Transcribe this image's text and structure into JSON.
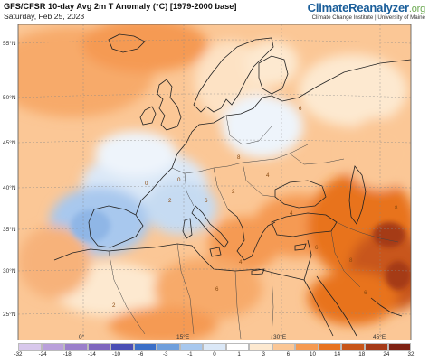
{
  "header": {
    "title": "GFS/CFSR 10-day Avg 2m T Anomaly (°C) [1979-2000 base]",
    "date": "Saturday, Feb 25, 2023",
    "brand_main": "ClimateReanalyzer",
    "brand_tld": ".org",
    "brand_sub": "Climate Change Institute | University of Maine"
  },
  "map": {
    "lat_labels": [
      "55°N",
      "50°N",
      "45°N",
      "40°N",
      "35°N",
      "30°N",
      "25°N"
    ],
    "lon_labels": [
      "0°",
      "15°E",
      "30°E",
      "45°E"
    ],
    "anomaly_numbers": [
      "6",
      "8",
      "4",
      "0",
      "0",
      "2",
      "6",
      "2",
      "4",
      "6",
      "8",
      "4",
      "2",
      "6",
      "6",
      "8"
    ]
  },
  "legend": {
    "labels": [
      "-32",
      "-24",
      "-18",
      "-14",
      "-10",
      "-6",
      "-3",
      "-1",
      "0",
      "1",
      "3",
      "6",
      "10",
      "14",
      "18",
      "24",
      "32"
    ],
    "colors": [
      "#d8c8ec",
      "#b9a0db",
      "#9a7fcb",
      "#7e66bf",
      "#4a4fb5",
      "#3a6fc8",
      "#6f9fdc",
      "#a8c8ee",
      "#dbe8f7",
      "#ffffff",
      "#fde9d0",
      "#fbc796",
      "#f59a52",
      "#e8731f",
      "#c8561a",
      "#a53a18",
      "#7e2214"
    ]
  }
}
